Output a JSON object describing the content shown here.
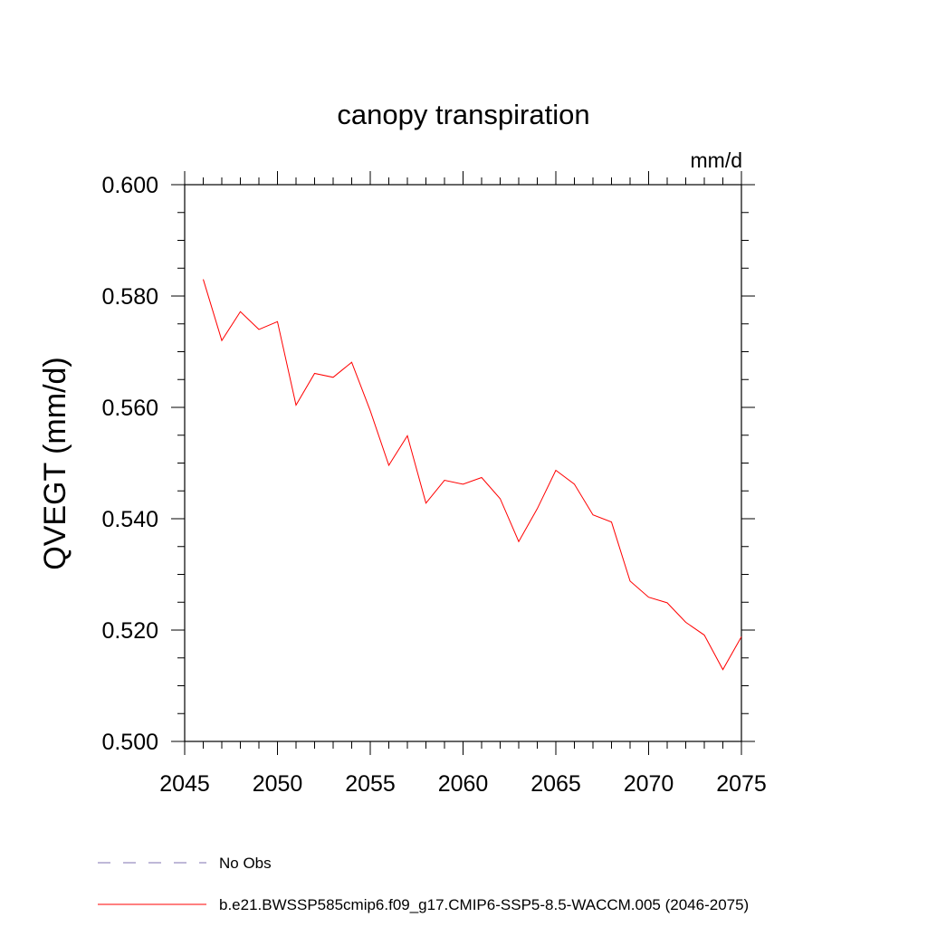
{
  "chart_data": {
    "type": "line",
    "title": "canopy transpiration",
    "units_label": "mm/d",
    "xlabel": "",
    "ylabel": "QVEGT  (mm/d)",
    "xlim": [
      2045,
      2075
    ],
    "ylim": [
      0.5,
      0.6
    ],
    "x_ticks": [
      2045,
      2050,
      2055,
      2060,
      2065,
      2070,
      2075
    ],
    "x_tick_labels": [
      "2045",
      "2050",
      "2055",
      "2060",
      "2065",
      "2070",
      "2075"
    ],
    "y_ticks": [
      0.5,
      0.52,
      0.54,
      0.56,
      0.58,
      0.6
    ],
    "y_tick_labels": [
      "0.500",
      "0.520",
      "0.540",
      "0.560",
      "0.580",
      "0.600"
    ],
    "grid": false,
    "legend_position": "bottom",
    "series": [
      {
        "name": "b.e21.BWSSP585cmip6.f09_g17.CMIP6-SSP5-8.5-WACCM.005 (2046-2075)",
        "color": "#ff0000",
        "style": "solid",
        "x": [
          2046,
          2047,
          2048,
          2049,
          2050,
          2051,
          2052,
          2053,
          2054,
          2055,
          2056,
          2057,
          2058,
          2059,
          2060,
          2061,
          2062,
          2063,
          2064,
          2065,
          2066,
          2067,
          2068,
          2069,
          2070,
          2071,
          2072,
          2073,
          2074,
          2075
        ],
        "values": [
          0.583,
          0.572,
          0.5772,
          0.574,
          0.5754,
          0.5604,
          0.5661,
          0.5654,
          0.5681,
          0.5594,
          0.5496,
          0.5549,
          0.5428,
          0.5469,
          0.5462,
          0.5474,
          0.5436,
          0.5359,
          0.5418,
          0.5487,
          0.5462,
          0.5407,
          0.5394,
          0.5288,
          0.5259,
          0.5249,
          0.5214,
          0.5191,
          0.5129,
          0.5188
        ]
      },
      {
        "name": "No Obs",
        "color": "#7f72b0",
        "style": "dashed",
        "x": [],
        "values": []
      }
    ]
  }
}
